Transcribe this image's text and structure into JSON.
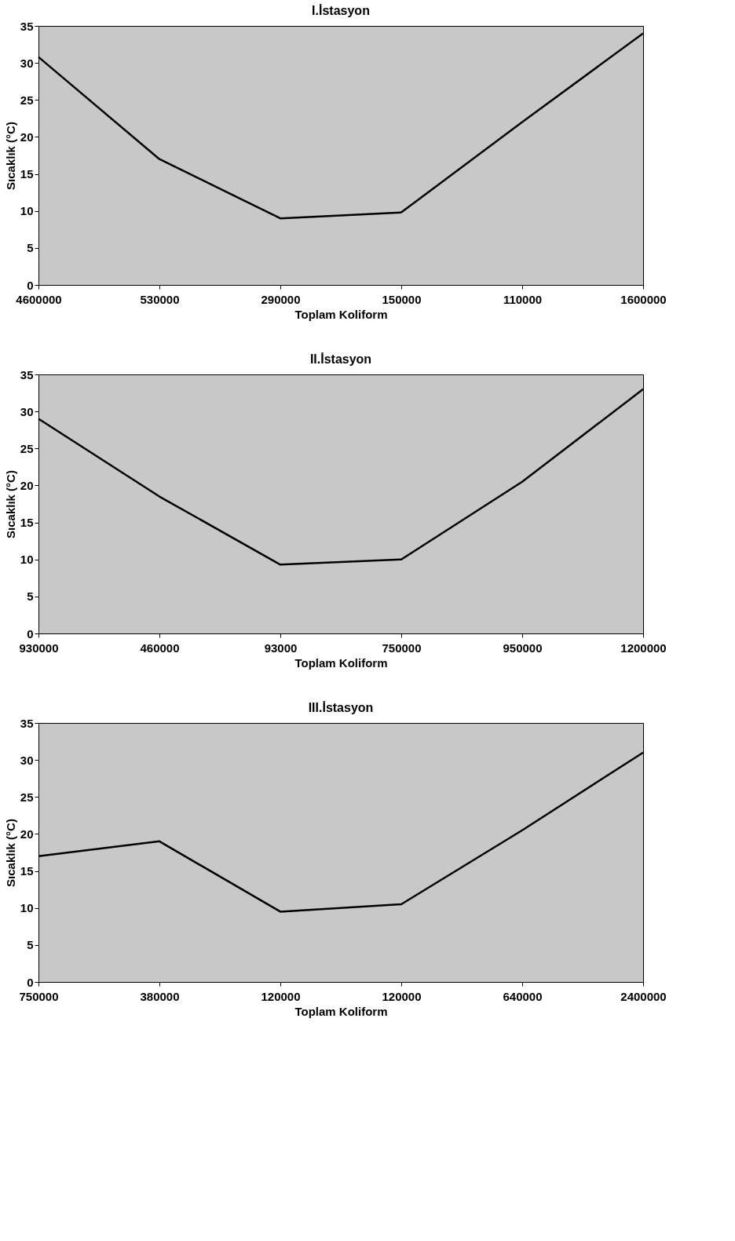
{
  "chart_data": [
    {
      "type": "line",
      "title": "I.İstasyon",
      "xlabel": "Toplam Koliform",
      "ylabel": "Sıcaklık (°C)",
      "categories": [
        "4600000",
        "530000",
        "290000",
        "150000",
        "110000",
        "1600000"
      ],
      "values": [
        30.8,
        17,
        9,
        9.8,
        22,
        34
      ],
      "color": "#000000",
      "ylim": [
        0,
        35
      ],
      "yticks": [
        0,
        5,
        10,
        15,
        20,
        25,
        30,
        35
      ],
      "grid": false
    },
    {
      "type": "line",
      "title": "II.İstasyon",
      "xlabel": "Toplam Koliform",
      "ylabel": "Sıcaklık (°C)",
      "categories": [
        "930000",
        "460000",
        "93000",
        "750000",
        "950000",
        "1200000"
      ],
      "values": [
        29,
        18.5,
        9.3,
        10,
        20.5,
        33
      ],
      "color": "#000000",
      "ylim": [
        0,
        35
      ],
      "yticks": [
        0,
        5,
        10,
        15,
        20,
        25,
        30,
        35
      ],
      "grid": false
    },
    {
      "type": "line",
      "title": "III.İstasyon",
      "xlabel": "Toplam Koliform",
      "ylabel": "Sıcaklık (°C)",
      "categories": [
        "750000",
        "380000",
        "120000",
        "120000",
        "640000",
        "2400000"
      ],
      "values": [
        17,
        19,
        9.5,
        10.5,
        20.5,
        31
      ],
      "color": "#000000",
      "ylim": [
        0,
        35
      ],
      "yticks": [
        0,
        5,
        10,
        15,
        20,
        25,
        30,
        35
      ],
      "grid": false
    }
  ]
}
